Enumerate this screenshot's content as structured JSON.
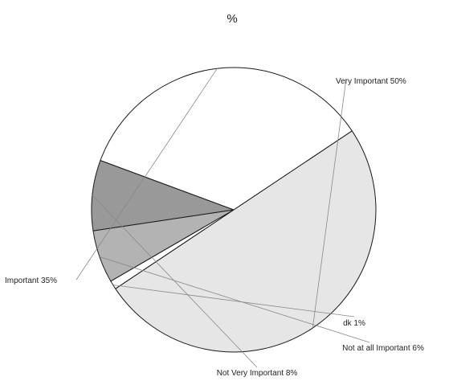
{
  "chart_data": {
    "type": "pie",
    "title": "%",
    "categories": [
      "Very Important",
      "dk",
      "Not at all Important",
      "Not Very Important",
      "Important"
    ],
    "values": [
      50,
      1,
      6,
      8,
      35
    ],
    "labels": [
      "Very Important  50%",
      "dk  1%",
      "Not at all Important  6%",
      "Not Very Important  8%",
      "Important  35%"
    ],
    "colors": [
      "#e6e6e6",
      "#ffffff",
      "#b3b3b3",
      "#999999",
      "#ffffff"
    ]
  }
}
